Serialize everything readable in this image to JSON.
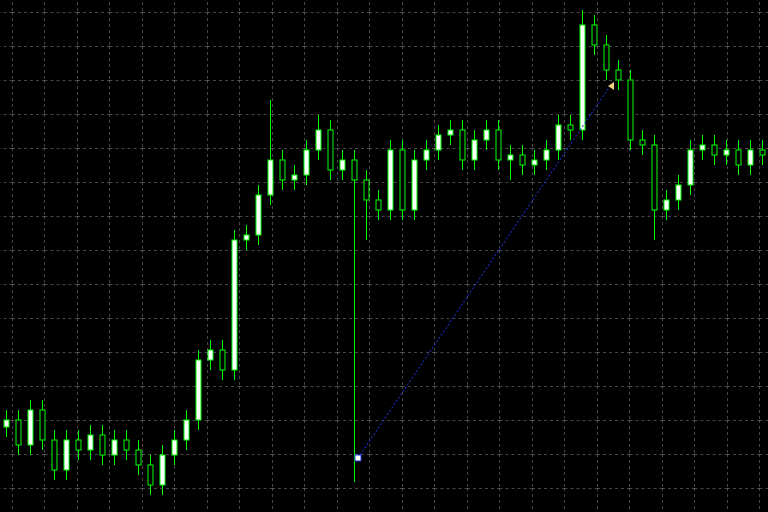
{
  "chart_data": {
    "type": "candlestick",
    "ylim": [
      0,
      512
    ],
    "up_color": "#ffffff",
    "down_color": "#000000",
    "wick_color": "#00ff00",
    "open": [
      85,
      92,
      67,
      102,
      72,
      42,
      72,
      62,
      77,
      57,
      72,
      62,
      47,
      27,
      57,
      72,
      92,
      152,
      162,
      142,
      272,
      277,
      317,
      352,
      332,
      337,
      362,
      382,
      342,
      352,
      332,
      312,
      302,
      362,
      302,
      352,
      362,
      377,
      382,
      352,
      372,
      382,
      352,
      357,
      347,
      352,
      362,
      387,
      382,
      487,
      467,
      442,
      432,
      372,
      367,
      302,
      312,
      327,
      362,
      367,
      357,
      362,
      347,
      362
    ],
    "high": [
      102,
      102,
      112,
      112,
      82,
      82,
      82,
      87,
      87,
      82,
      82,
      72,
      57,
      67,
      82,
      102,
      162,
      172,
      172,
      282,
      287,
      327,
      412,
      362,
      347,
      372,
      397,
      392,
      362,
      362,
      342,
      322,
      372,
      372,
      362,
      372,
      387,
      392,
      392,
      382,
      392,
      392,
      367,
      367,
      362,
      372,
      397,
      397,
      502,
      497,
      477,
      452,
      442,
      382,
      377,
      322,
      337,
      372,
      377,
      377,
      372,
      372,
      372,
      372
    ],
    "low": [
      75,
      57,
      57,
      62,
      32,
      32,
      52,
      52,
      47,
      47,
      52,
      37,
      17,
      17,
      47,
      62,
      82,
      142,
      132,
      132,
      262,
      267,
      307,
      322,
      322,
      327,
      352,
      332,
      332,
      30,
      272,
      292,
      292,
      292,
      292,
      342,
      352,
      367,
      342,
      342,
      362,
      342,
      332,
      337,
      337,
      342,
      352,
      372,
      372,
      457,
      432,
      422,
      362,
      357,
      272,
      292,
      302,
      317,
      352,
      347,
      347,
      337,
      337,
      347
    ],
    "close": [
      92,
      67,
      102,
      72,
      42,
      72,
      62,
      77,
      57,
      72,
      62,
      47,
      27,
      57,
      72,
      92,
      152,
      162,
      142,
      272,
      277,
      317,
      352,
      332,
      337,
      362,
      382,
      342,
      352,
      332,
      312,
      302,
      362,
      302,
      352,
      362,
      377,
      382,
      352,
      372,
      382,
      352,
      357,
      347,
      352,
      362,
      387,
      382,
      487,
      467,
      442,
      432,
      372,
      367,
      302,
      312,
      327,
      362,
      367,
      357,
      362,
      347,
      362,
      357
    ]
  }
}
